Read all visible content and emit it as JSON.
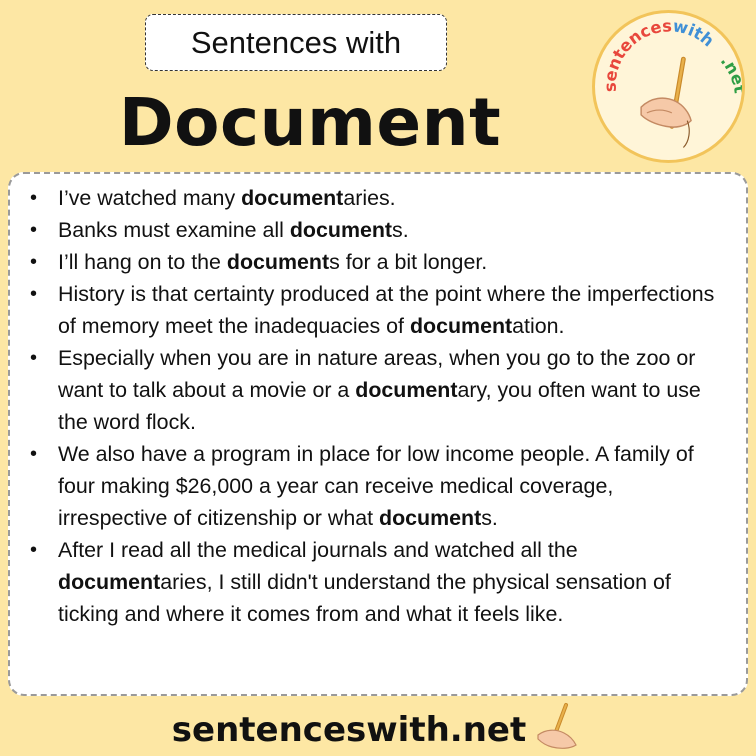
{
  "header": {
    "tag": "Sentences with",
    "title": "Document"
  },
  "logo": {
    "text_top": "sentenceswith",
    "text_right": ".net",
    "colors": {
      "sentences": "#e8473c",
      "with": "#3f8fd6",
      "net": "#2f9e44",
      "ring": "#f2c45a",
      "bg": "#fff5d8"
    }
  },
  "sentences": [
    {
      "segments": [
        {
          "text": "I’ve watched many ",
          "bold": false
        },
        {
          "text": "document",
          "bold": true
        },
        {
          "text": "aries.",
          "bold": false
        }
      ]
    },
    {
      "segments": [
        {
          "text": "Banks must examine all ",
          "bold": false
        },
        {
          "text": "document",
          "bold": true
        },
        {
          "text": "s.",
          "bold": false
        }
      ]
    },
    {
      "segments": [
        {
          "text": "I’ll hang on to the ",
          "bold": false
        },
        {
          "text": "document",
          "bold": true
        },
        {
          "text": "s for a bit longer.",
          "bold": false
        }
      ]
    },
    {
      "segments": [
        {
          "text": "History is that certainty produced at the point where the imperfections of memory meet the inadequacies of ",
          "bold": false
        },
        {
          "text": "document",
          "bold": true
        },
        {
          "text": "ation.",
          "bold": false
        }
      ]
    },
    {
      "segments": [
        {
          "text": "Especially when you are in nature areas, when you go to the zoo or want to talk about a movie or a ",
          "bold": false
        },
        {
          "text": "document",
          "bold": true
        },
        {
          "text": "ary, you often want to use the word flock.",
          "bold": false
        }
      ]
    },
    {
      "segments": [
        {
          "text": "We also have a program in place for low income people. A family of four making $26,000 a year can receive medical coverage, irrespective of citizenship or what ",
          "bold": false
        },
        {
          "text": "document",
          "bold": true
        },
        {
          "text": "s.",
          "bold": false
        }
      ]
    },
    {
      "segments": [
        {
          "text": "After I read all the medical journals and watched all the ",
          "bold": false
        },
        {
          "text": "document",
          "bold": true
        },
        {
          "text": "aries, I still didn't understand the physical sensation of ticking and where it comes from and what it feels like.",
          "bold": false
        }
      ]
    }
  ],
  "footer": {
    "site": "sentenceswith.net"
  }
}
